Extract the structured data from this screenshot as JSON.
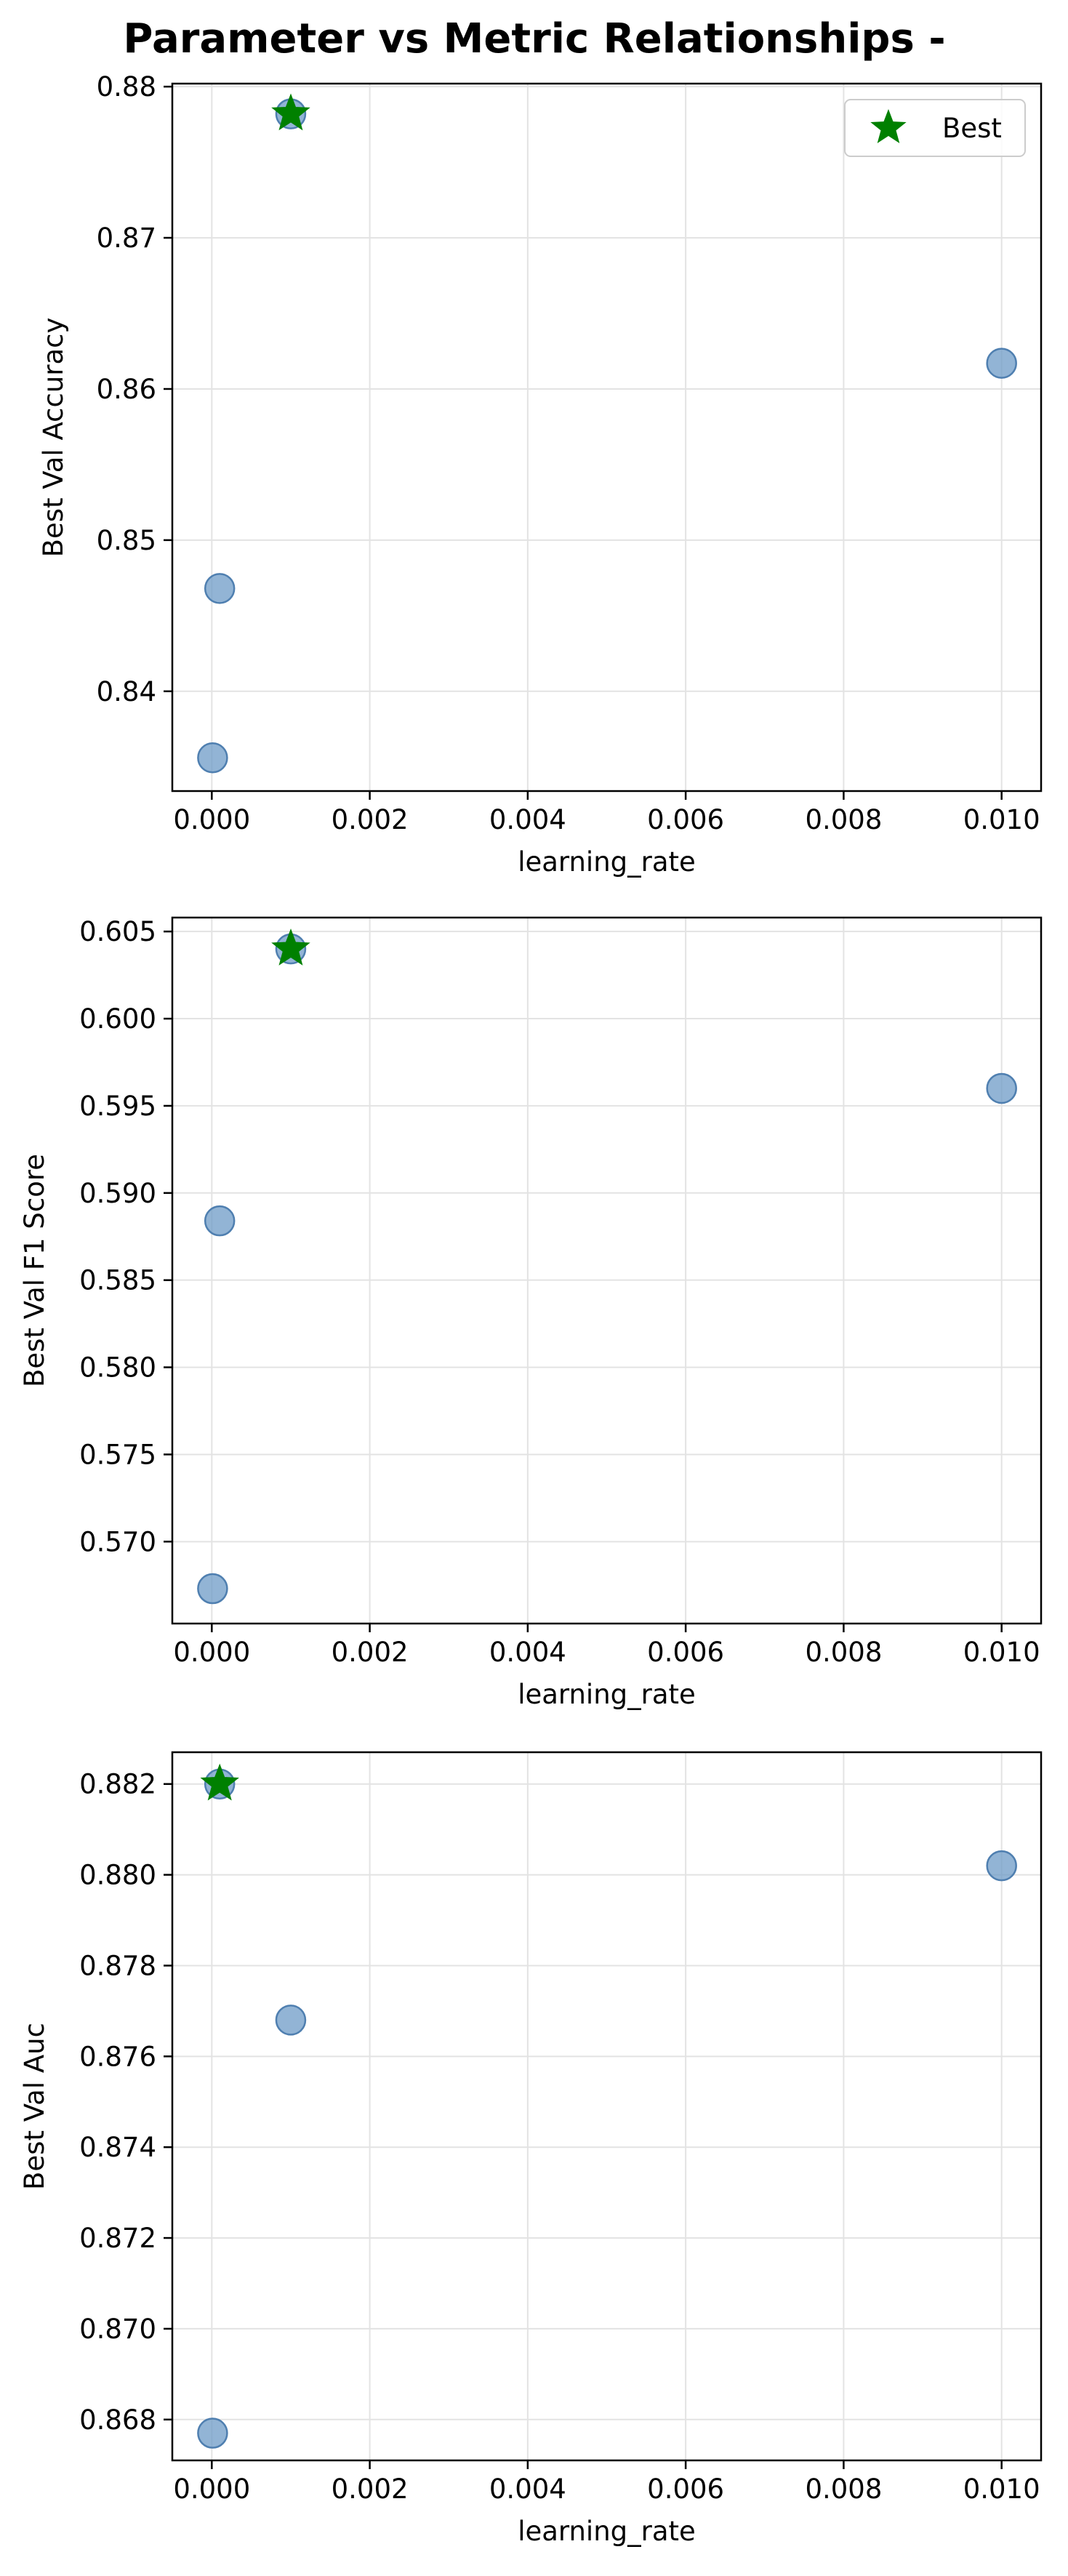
{
  "figure": {
    "title": "Parameter vs Metric Relationships -"
  },
  "colors": {
    "point_fill": "#6e9bc7",
    "point_stroke": "#4f7fb0",
    "best_marker": "#008000",
    "grid": "#e3e3e3",
    "axes": "#000000"
  },
  "chart_data": [
    {
      "type": "scatter",
      "xlabel": "learning_rate",
      "ylabel": "Best Val Accuracy",
      "xlim": [
        -0.0005,
        0.0105
      ],
      "ylim": [
        0.8334,
        0.8802
      ],
      "xticks": [
        0.0,
        0.002,
        0.004,
        0.006,
        0.008,
        0.01
      ],
      "xtick_labels": [
        "0.000",
        "0.002",
        "0.004",
        "0.006",
        "0.008",
        "0.010"
      ],
      "yticks": [
        0.84,
        0.85,
        0.86,
        0.87,
        0.88
      ],
      "ytick_labels": [
        "0.84",
        "0.85",
        "0.86",
        "0.87",
        "0.88"
      ],
      "grid": true,
      "points": [
        {
          "x": 1e-05,
          "y": 0.8356
        },
        {
          "x": 0.0001,
          "y": 0.8468
        },
        {
          "x": 0.001,
          "y": 0.8782
        },
        {
          "x": 0.01,
          "y": 0.8617
        }
      ],
      "best": {
        "x": 0.001,
        "y": 0.8782
      },
      "legend": {
        "label": "Best",
        "placement": "upper right"
      }
    },
    {
      "type": "scatter",
      "xlabel": "learning_rate",
      "ylabel": "Best Val F1 Score",
      "xlim": [
        -0.0005,
        0.0105
      ],
      "ylim": [
        0.5653,
        0.6058
      ],
      "xticks": [
        0.0,
        0.002,
        0.004,
        0.006,
        0.008,
        0.01
      ],
      "xtick_labels": [
        "0.000",
        "0.002",
        "0.004",
        "0.006",
        "0.008",
        "0.010"
      ],
      "yticks": [
        0.57,
        0.575,
        0.58,
        0.585,
        0.59,
        0.595,
        0.6,
        0.605
      ],
      "ytick_labels": [
        "0.570",
        "0.575",
        "0.580",
        "0.585",
        "0.590",
        "0.595",
        "0.600",
        "0.605"
      ],
      "grid": true,
      "points": [
        {
          "x": 1e-05,
          "y": 0.5673
        },
        {
          "x": 0.0001,
          "y": 0.5884
        },
        {
          "x": 0.001,
          "y": 0.604
        },
        {
          "x": 0.01,
          "y": 0.596
        }
      ],
      "best": {
        "x": 0.001,
        "y": 0.604
      }
    },
    {
      "type": "scatter",
      "xlabel": "learning_rate",
      "ylabel": "Best Val Auc",
      "xlim": [
        -0.0005,
        0.0105
      ],
      "ylim": [
        0.8671,
        0.8827
      ],
      "xticks": [
        0.0,
        0.002,
        0.004,
        0.006,
        0.008,
        0.01
      ],
      "xtick_labels": [
        "0.000",
        "0.002",
        "0.004",
        "0.006",
        "0.008",
        "0.010"
      ],
      "yticks": [
        0.868,
        0.87,
        0.872,
        0.874,
        0.876,
        0.878,
        0.88,
        0.882
      ],
      "ytick_labels": [
        "0.868",
        "0.870",
        "0.872",
        "0.874",
        "0.876",
        "0.878",
        "0.880",
        "0.882"
      ],
      "grid": true,
      "points": [
        {
          "x": 1e-05,
          "y": 0.8677
        },
        {
          "x": 0.0001,
          "y": 0.882
        },
        {
          "x": 0.001,
          "y": 0.8768
        },
        {
          "x": 0.01,
          "y": 0.8802
        }
      ],
      "best": {
        "x": 0.0001,
        "y": 0.882
      }
    }
  ]
}
